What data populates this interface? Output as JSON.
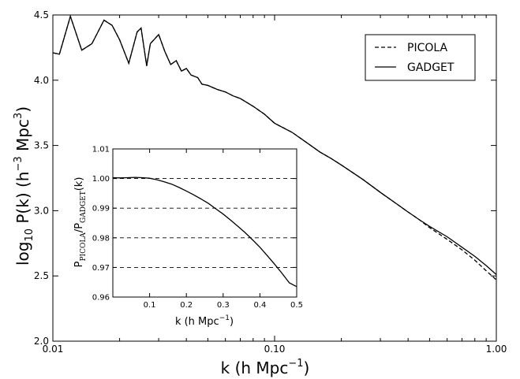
{
  "chart_data": [
    {
      "type": "line",
      "xscale": "log",
      "xlim": [
        0.01,
        1.0
      ],
      "ylim": [
        2.0,
        4.5
      ],
      "x_ticks": [
        "0.01",
        "0.10",
        "1.00"
      ],
      "y_ticks": [
        "2.0",
        "2.5",
        "3.0",
        "3.5",
        "4.0",
        "4.5"
      ],
      "xlabel": {
        "base": "k (h Mpc",
        "sup": "−1",
        "tail": ")"
      },
      "ylabel": {
        "pre": "log",
        "sub": "10",
        "mid": " P(k) (h",
        "sup1": "−3",
        "mid2": " Mpc",
        "sup2": "3",
        "tail": ")"
      },
      "legend_position": "top-right",
      "series": [
        {
          "name": "PICOLA",
          "style": "dashed",
          "x": [
            0.01,
            0.0107,
            0.012,
            0.0135,
            0.015,
            0.017,
            0.0185,
            0.02,
            0.022,
            0.024,
            0.025,
            0.0265,
            0.0275,
            0.03,
            0.032,
            0.034,
            0.036,
            0.038,
            0.04,
            0.042,
            0.045,
            0.047,
            0.05,
            0.055,
            0.06,
            0.065,
            0.07,
            0.08,
            0.09,
            0.1,
            0.12,
            0.14,
            0.16,
            0.18,
            0.2,
            0.25,
            0.3,
            0.35,
            0.4,
            0.45,
            0.5,
            0.6,
            0.7,
            0.8,
            0.9,
            1.0
          ],
          "values": [
            4.21,
            4.2,
            4.49,
            4.23,
            4.28,
            4.46,
            4.42,
            4.31,
            4.13,
            4.37,
            4.4,
            4.11,
            4.28,
            4.35,
            4.22,
            4.12,
            4.15,
            4.07,
            4.09,
            4.04,
            4.02,
            3.97,
            3.96,
            3.93,
            3.91,
            3.88,
            3.86,
            3.8,
            3.74,
            3.67,
            3.6,
            3.52,
            3.45,
            3.4,
            3.35,
            3.24,
            3.14,
            3.06,
            2.99,
            2.93,
            2.87,
            2.78,
            2.7,
            2.62,
            2.54,
            2.47
          ]
        },
        {
          "name": "GADGET",
          "style": "solid",
          "x": [
            0.01,
            0.0107,
            0.012,
            0.0135,
            0.015,
            0.017,
            0.0185,
            0.02,
            0.022,
            0.024,
            0.025,
            0.0265,
            0.0275,
            0.03,
            0.032,
            0.034,
            0.036,
            0.038,
            0.04,
            0.042,
            0.045,
            0.047,
            0.05,
            0.055,
            0.06,
            0.065,
            0.07,
            0.08,
            0.09,
            0.1,
            0.12,
            0.14,
            0.16,
            0.18,
            0.2,
            0.25,
            0.3,
            0.35,
            0.4,
            0.45,
            0.5,
            0.6,
            0.7,
            0.8,
            0.9,
            1.0
          ],
          "values": [
            4.21,
            4.2,
            4.49,
            4.23,
            4.28,
            4.46,
            4.42,
            4.31,
            4.13,
            4.37,
            4.4,
            4.11,
            4.28,
            4.35,
            4.22,
            4.12,
            4.15,
            4.07,
            4.09,
            4.04,
            4.02,
            3.97,
            3.96,
            3.93,
            3.91,
            3.88,
            3.86,
            3.8,
            3.74,
            3.67,
            3.6,
            3.52,
            3.45,
            3.4,
            3.35,
            3.24,
            3.14,
            3.06,
            2.99,
            2.93,
            2.88,
            2.8,
            2.72,
            2.65,
            2.58,
            2.51
          ]
        }
      ]
    },
    {
      "type": "line",
      "placement": "inset",
      "xlim": [
        0.0,
        0.5
      ],
      "ylim": [
        0.96,
        1.01
      ],
      "x_ticks": [
        "0.1",
        "0.2",
        "0.3",
        "0.4",
        "0.5"
      ],
      "y_ticks": [
        "0.96",
        "0.97",
        "0.98",
        "0.99",
        "1.00",
        "1.01"
      ],
      "reference_lines": [
        0.97,
        0.98,
        0.99,
        1.0
      ],
      "xlabel": {
        "base": "k (h Mpc",
        "sup": "−1",
        "tail": ")"
      },
      "ylabel": {
        "p1": "P",
        "s1": "PICOLA",
        "mid": "/P",
        "s2": "GADGET",
        "tail": "(k)"
      },
      "series": [
        {
          "x": [
            0.0,
            0.02,
            0.04,
            0.06,
            0.08,
            0.1,
            0.12,
            0.14,
            0.16,
            0.18,
            0.2,
            0.22,
            0.24,
            0.26,
            0.28,
            0.3,
            0.32,
            0.34,
            0.36,
            0.38,
            0.4,
            0.42,
            0.44,
            0.46,
            0.48,
            0.5
          ],
          "values": [
            1.0003,
            1.0002,
            1.0003,
            1.0004,
            1.0003,
            1.0001,
            0.9996,
            0.9989,
            0.9981,
            0.997,
            0.9958,
            0.9945,
            0.9931,
            0.9916,
            0.9898,
            0.988,
            0.986,
            0.9839,
            0.9817,
            0.9793,
            0.9768,
            0.974,
            0.9711,
            0.968,
            0.9648,
            0.9635
          ]
        }
      ]
    }
  ]
}
